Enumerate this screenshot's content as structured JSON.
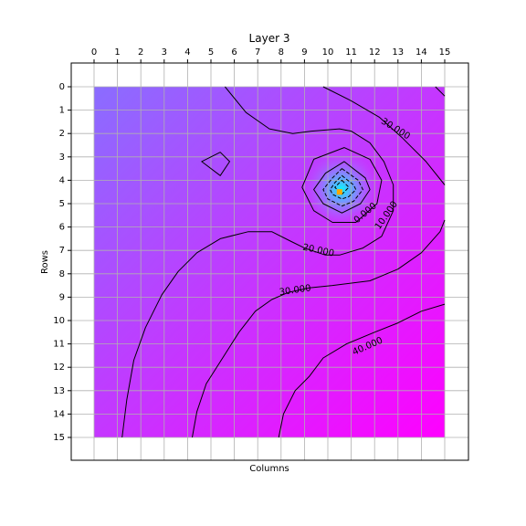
{
  "chart_data": {
    "type": "heatmap",
    "title": "Layer 3",
    "xlabel": "Columns",
    "ylabel": "Rows",
    "xlim": [
      -1,
      16
    ],
    "ylim": [
      16,
      -1
    ],
    "x_ticks": [
      0,
      1,
      2,
      3,
      4,
      5,
      6,
      7,
      8,
      9,
      10,
      11,
      12,
      13,
      14,
      15
    ],
    "y_ticks": [
      0,
      1,
      2,
      3,
      4,
      5,
      6,
      7,
      8,
      9,
      10,
      11,
      12,
      13,
      14,
      15
    ],
    "x_axis_position": "top",
    "y_axis_inverted": true,
    "grid": true,
    "colormap": "cool",
    "colormap_colors": [
      "#8a6dff",
      "#ff00ff"
    ],
    "min_color": "#00ffff",
    "marker": {
      "x": 10.5,
      "y": 4.5,
      "color": "#ffa500"
    },
    "contour_levels": [
      0,
      10,
      20,
      30,
      40
    ],
    "contour_labels": [
      {
        "text": "30.000",
        "x": 12.9,
        "y": 1.8,
        "angle": 32
      },
      {
        "text": "0.000",
        "x": 11.6,
        "y": 5.4,
        "angle": -40
      },
      {
        "text": "10.000",
        "x": 12.5,
        "y": 5.5,
        "angle": -55
      },
      {
        "text": "20.000",
        "x": 9.6,
        "y": 7.0,
        "angle": 12
      },
      {
        "text": "30.000",
        "x": 8.6,
        "y": 8.7,
        "angle": -8
      },
      {
        "text": "40.000",
        "x": 11.7,
        "y": 11.1,
        "angle": -24
      }
    ],
    "contour_lines": [
      {
        "level": 30,
        "style": "solid",
        "points": [
          [
            9.8,
            0
          ],
          [
            11,
            0.6
          ],
          [
            12.2,
            1.3
          ],
          [
            13.2,
            2.2
          ],
          [
            14.2,
            3.2
          ],
          [
            15,
            4.2
          ]
        ]
      },
      {
        "level": 40,
        "style": "solid",
        "points": [
          [
            14.6,
            0
          ],
          [
            15,
            0.4
          ]
        ]
      },
      {
        "level": 20,
        "style": "solid",
        "points": [
          [
            5.6,
            0
          ],
          [
            6.5,
            1.1
          ],
          [
            7.5,
            1.8
          ],
          [
            8.5,
            2.0
          ],
          [
            9.3,
            1.9
          ],
          [
            10.5,
            1.8
          ],
          [
            11,
            1.9
          ],
          [
            11.8,
            2.4
          ],
          [
            12.4,
            3.2
          ],
          [
            12.8,
            4.2
          ],
          [
            12.8,
            5.3
          ],
          [
            12.3,
            6.4
          ],
          [
            11.5,
            6.9
          ],
          [
            10.5,
            7.2
          ],
          [
            9.9,
            7.2
          ],
          [
            9.0,
            6.9
          ],
          [
            8.4,
            6.6
          ],
          [
            7.6,
            6.2
          ],
          [
            6.6,
            6.2
          ],
          [
            5.4,
            6.5
          ],
          [
            4.4,
            7.1
          ],
          [
            3.6,
            7.9
          ],
          [
            2.9,
            8.9
          ],
          [
            2.2,
            10.3
          ],
          [
            1.7,
            11.7
          ],
          [
            1.4,
            13.4
          ],
          [
            1.2,
            15
          ]
        ]
      },
      {
        "level": 30,
        "style": "solid",
        "points": [
          [
            4.2,
            15
          ],
          [
            4.4,
            13.9
          ],
          [
            4.8,
            12.7
          ],
          [
            5.5,
            11.6
          ],
          [
            6.2,
            10.5
          ],
          [
            6.9,
            9.6
          ],
          [
            7.6,
            9.1
          ],
          [
            8.3,
            8.8
          ],
          [
            9.2,
            8.6
          ],
          [
            10.2,
            8.5
          ],
          [
            11.8,
            8.3
          ],
          [
            13.0,
            7.8
          ],
          [
            14.0,
            7.1
          ],
          [
            14.8,
            6.2
          ],
          [
            15,
            5.7
          ]
        ]
      },
      {
        "level": 40,
        "style": "solid",
        "points": [
          [
            7.9,
            15
          ],
          [
            8.1,
            14.0
          ],
          [
            8.6,
            13.0
          ],
          [
            9.2,
            12.4
          ],
          [
            9.8,
            11.6
          ],
          [
            10.8,
            11.0
          ],
          [
            12.0,
            10.5
          ],
          [
            13.0,
            10.1
          ],
          [
            14.0,
            9.6
          ],
          [
            15,
            9.3
          ]
        ]
      },
      {
        "level": 20,
        "style": "solid",
        "closed": true,
        "points": [
          [
            4.6,
            3.2
          ],
          [
            5.4,
            2.8
          ],
          [
            5.8,
            3.2
          ],
          [
            5.4,
            3.8
          ]
        ]
      },
      {
        "level": 10,
        "style": "solid",
        "closed": true,
        "points": [
          [
            10.7,
            2.6
          ],
          [
            11.8,
            3.1
          ],
          [
            12.3,
            4.0
          ],
          [
            12.1,
            5.0
          ],
          [
            11.2,
            5.8
          ],
          [
            10.2,
            5.8
          ],
          [
            9.4,
            5.3
          ],
          [
            8.9,
            4.3
          ],
          [
            9.4,
            3.1
          ]
        ]
      },
      {
        "level": 0,
        "style": "solid",
        "closed": true,
        "points": [
          [
            10.7,
            3.2
          ],
          [
            11.6,
            3.9
          ],
          [
            11.8,
            4.4
          ],
          [
            11.4,
            5.0
          ],
          [
            10.6,
            5.4
          ],
          [
            9.8,
            5.0
          ],
          [
            9.4,
            4.4
          ],
          [
            9.9,
            3.7
          ]
        ]
      },
      {
        "level": -10,
        "style": "dashed",
        "closed": true,
        "points": [
          [
            10.6,
            3.5
          ],
          [
            11.3,
            4.0
          ],
          [
            11.5,
            4.4
          ],
          [
            11.1,
            4.9
          ],
          [
            10.6,
            5.1
          ],
          [
            10.0,
            4.8
          ],
          [
            9.8,
            4.4
          ],
          [
            10.2,
            3.9
          ]
        ]
      },
      {
        "level": -20,
        "style": "dashed",
        "closed": true,
        "points": [
          [
            10.6,
            3.8
          ],
          [
            11.1,
            4.2
          ],
          [
            11.2,
            4.4
          ],
          [
            10.9,
            4.7
          ],
          [
            10.6,
            4.8
          ],
          [
            10.2,
            4.6
          ],
          [
            10.1,
            4.4
          ],
          [
            10.3,
            4.1
          ]
        ]
      },
      {
        "level": -30,
        "style": "dashed",
        "closed": true,
        "points": [
          [
            10.6,
            4.0
          ],
          [
            10.9,
            4.3
          ],
          [
            10.6,
            4.6
          ],
          [
            10.3,
            4.3
          ]
        ]
      }
    ]
  }
}
